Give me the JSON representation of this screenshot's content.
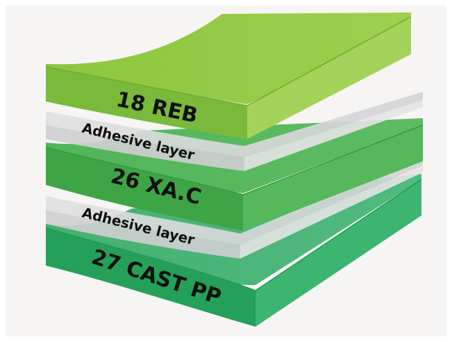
{
  "layers": [
    {
      "label": "18 REB",
      "material": "top-film",
      "color_top": "#8dc63f",
      "color_front": "#7ab93a",
      "color_side": "#a4d25a"
    },
    {
      "label": "Adhesive layer",
      "material": "adhesive",
      "color_top": "#dcdcdc",
      "color_front": "#cfcfd1",
      "color_side": "#e4e4e6"
    },
    {
      "label": "26 XA.C",
      "material": "middle-film",
      "color_top": "#46b04a",
      "color_front": "#3ea544",
      "color_side": "#55b85a"
    },
    {
      "label": "Adhesive layer",
      "material": "adhesive",
      "color_top": "#dcdcdc",
      "color_front": "#cfcfd1",
      "color_side": "#e4e4e6"
    },
    {
      "label": "27 CAST PP",
      "material": "bottom-film",
      "color_top": "#2eaa63",
      "color_front": "#24a05a",
      "color_side": "#3bb56f"
    }
  ]
}
